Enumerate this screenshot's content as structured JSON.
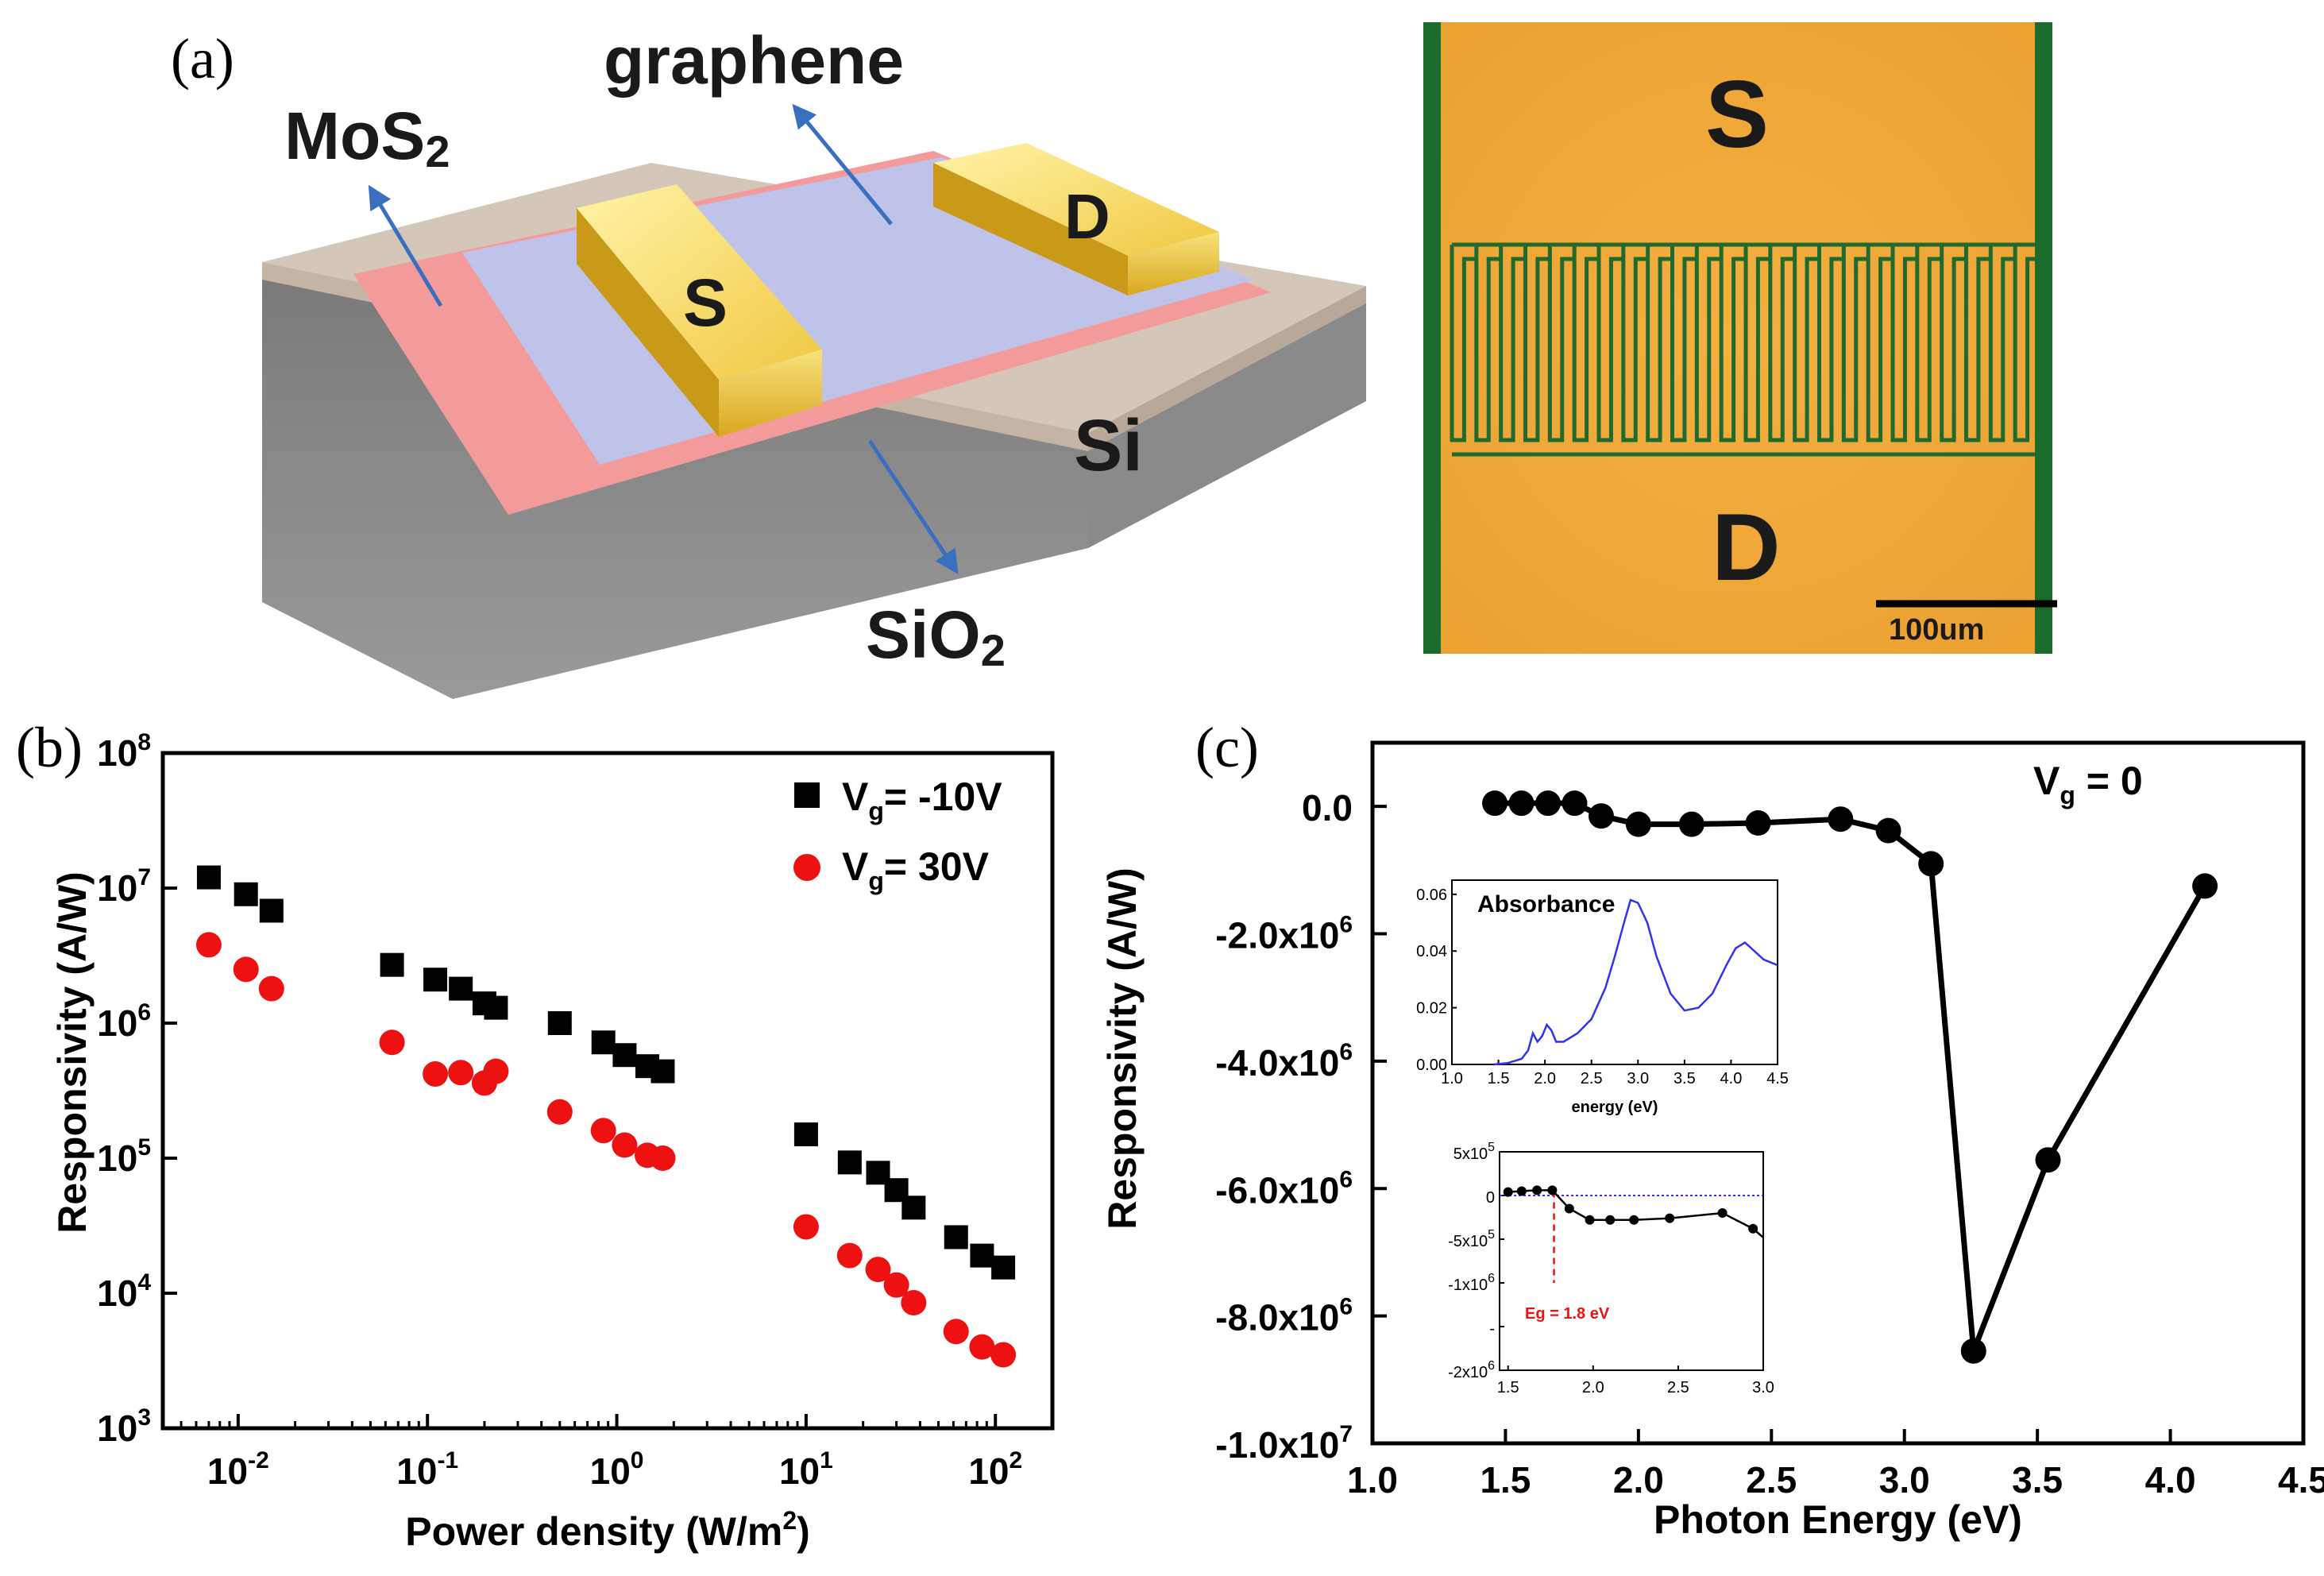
{
  "panels": {
    "a_label": "(a)",
    "b_label": "(b)",
    "c_label": "(c)"
  },
  "schematic": {
    "graphene": "graphene",
    "mos2_main": "MoS",
    "mos2_sub": "2",
    "sio2_main": "SiO",
    "sio2_sub": "2",
    "si": "Si",
    "source": "S",
    "drain": "D"
  },
  "micrograph": {
    "source": "S",
    "drain": "D",
    "scale_bar": "100um"
  },
  "chart_data": [
    {
      "id": "b",
      "type": "scatter",
      "xlabel": "Power density (W/m²)",
      "xlabel_main": "Power density (W/m",
      "xlabel_sup": "2",
      "xlabel_end": ")",
      "ylabel": "Responsivity (A/W)",
      "xscale": "log",
      "yscale": "log",
      "xlim": [
        0.004,
        200
      ],
      "ylim": [
        1000,
        100000000
      ],
      "xticks": [
        {
          "base": "10",
          "exp": "-2",
          "value": 0.01
        },
        {
          "base": "10",
          "exp": "-1",
          "value": 0.1
        },
        {
          "base": "10",
          "exp": "0",
          "value": 1
        },
        {
          "base": "10",
          "exp": "1",
          "value": 10
        },
        {
          "base": "10",
          "exp": "2",
          "value": 100
        }
      ],
      "yticks": [
        {
          "base": "10",
          "exp": "3",
          "value": 1000
        },
        {
          "base": "10",
          "exp": "4",
          "value": 10000
        },
        {
          "base": "10",
          "exp": "5",
          "value": 100000
        },
        {
          "base": "10",
          "exp": "6",
          "value": 1000000
        },
        {
          "base": "10",
          "exp": "7",
          "value": 10000000
        },
        {
          "base": "10",
          "exp": "8",
          "value": 100000000
        }
      ],
      "legend_position": "top-right",
      "series": [
        {
          "name": "Vg= -10V",
          "legend_main": "V",
          "legend_sub": "g",
          "legend_rest": "= -10V",
          "marker": "square",
          "color": "#000000",
          "x": [
            0.007,
            0.011,
            0.015,
            0.065,
            0.11,
            0.15,
            0.2,
            0.23,
            0.5,
            0.85,
            1.1,
            1.45,
            1.75,
            10,
            17,
            24,
            30,
            37,
            62,
            85,
            110
          ],
          "y": [
            12000000,
            9000000,
            6800000,
            2700000,
            2100000,
            1800000,
            1400000,
            1300000,
            1000000,
            720000,
            580000,
            480000,
            440000,
            150000,
            93000,
            78000,
            58000,
            43000,
            26000,
            19000,
            15500
          ]
        },
        {
          "name": "Vg= 30V",
          "legend_main": "V",
          "legend_sub": "g",
          "legend_rest": "= 30V",
          "marker": "circle",
          "color": "#ee1111",
          "x": [
            0.007,
            0.011,
            0.015,
            0.065,
            0.11,
            0.15,
            0.2,
            0.23,
            0.5,
            0.85,
            1.1,
            1.45,
            1.75,
            10,
            17,
            24,
            30,
            37,
            62,
            85,
            110
          ],
          "y": [
            3800000,
            2500000,
            1800000,
            720000,
            420000,
            430000,
            360000,
            440000,
            220000,
            160000,
            125000,
            105000,
            100000,
            31000,
            19000,
            15000,
            11500,
            8500,
            5200,
            4000,
            3500
          ]
        }
      ]
    },
    {
      "id": "c",
      "type": "line",
      "xlabel": "Photon Energy (eV)",
      "ylabel": "Responsivity (A/W)",
      "xlim": [
        1.0,
        4.5
      ],
      "ylim": [
        -10000000,
        1000000
      ],
      "xticks": [
        "1.0",
        "1.5",
        "2.0",
        "2.5",
        "3.0",
        "3.5",
        "4.0",
        "4.5"
      ],
      "yticks": [
        {
          "value": 0,
          "main": "0.0",
          "exp": ""
        },
        {
          "value": -2000000,
          "main": "-2.0x10",
          "exp": "6"
        },
        {
          "value": -4000000,
          "main": "-4.0x10",
          "exp": "6"
        },
        {
          "value": -6000000,
          "main": "-6.0x10",
          "exp": "6"
        },
        {
          "value": -8000000,
          "main": "-8.0x10",
          "exp": "6"
        },
        {
          "value": -10000000,
          "main": "-1.0x10",
          "exp": "7"
        }
      ],
      "annotation_main": "V",
      "annotation_sub": "g",
      "annotation_rest": " = 0",
      "series": [
        {
          "name": "Vg = 0",
          "color": "#000000",
          "x": [
            1.46,
            1.56,
            1.66,
            1.76,
            1.86,
            2.0,
            2.2,
            2.45,
            2.76,
            2.94,
            3.1,
            3.26,
            3.54,
            4.13
          ],
          "y": [
            50000,
            50000,
            50000,
            50000,
            -150000,
            -280000,
            -280000,
            -260000,
            -200000,
            -380000,
            -900000,
            -8550000,
            -5550000,
            -1250000
          ]
        }
      ]
    },
    {
      "id": "c-inset-absorbance",
      "type": "line",
      "title": "Absorbance",
      "xlabel": "energy (eV)",
      "ylabel": "",
      "xlim": [
        1.0,
        4.5
      ],
      "ylim": [
        0,
        0.065
      ],
      "xticks": [
        "1.0",
        "1.5",
        "2.0",
        "2.5",
        "3.0",
        "3.5",
        "4.0",
        "4.5"
      ],
      "yticks": [
        "0.00",
        "0.02",
        "0.04",
        "0.06"
      ],
      "series": [
        {
          "name": "absorbance",
          "color": "#3333ee",
          "x": [
            1.45,
            1.6,
            1.75,
            1.82,
            1.87,
            1.92,
            1.97,
            2.02,
            2.07,
            2.12,
            2.2,
            2.35,
            2.5,
            2.65,
            2.75,
            2.85,
            2.92,
            3.0,
            3.1,
            3.2,
            3.35,
            3.5,
            3.65,
            3.8,
            3.95,
            4.05,
            4.15,
            4.25,
            4.35,
            4.5
          ],
          "y": [
            0.0,
            0.0005,
            0.002,
            0.005,
            0.011,
            0.008,
            0.01,
            0.014,
            0.012,
            0.008,
            0.008,
            0.011,
            0.016,
            0.027,
            0.038,
            0.05,
            0.058,
            0.057,
            0.05,
            0.038,
            0.025,
            0.019,
            0.02,
            0.025,
            0.035,
            0.041,
            0.043,
            0.04,
            0.037,
            0.035
          ]
        }
      ]
    },
    {
      "id": "c-inset-bandgap",
      "type": "line",
      "xlabel": "",
      "ylabel": "",
      "xlim": [
        1.45,
        3.0
      ],
      "ylim": [
        -2000000,
        500000
      ],
      "xticks": [
        "1.5",
        "2.0",
        "2.5",
        "3.0"
      ],
      "yticks": [
        {
          "value": 500000,
          "main": "5x10",
          "exp": "5"
        },
        {
          "value": 0,
          "main": "0",
          "exp": ""
        },
        {
          "value": -500000,
          "main": "-5x10",
          "exp": "5"
        },
        {
          "value": -1000000,
          "main": "-1x10",
          "exp": "6"
        },
        {
          "value": -1500000,
          "main": "-",
          "exp": ""
        },
        {
          "value": -2000000,
          "main": "-2x10",
          "exp": "6"
        }
      ],
      "annotation": "Eg = 1.8 eV",
      "eg_value": 1.77,
      "series": [
        {
          "name": "responsivity",
          "color": "#000000",
          "x": [
            1.5,
            1.58,
            1.67,
            1.76,
            1.86,
            1.98,
            2.1,
            2.24,
            2.45,
            2.76,
            2.94,
            3.0
          ],
          "y": [
            40000,
            50000,
            60000,
            60000,
            -150000,
            -280000,
            -280000,
            -280000,
            -260000,
            -200000,
            -380000,
            -480000
          ]
        }
      ]
    }
  ]
}
